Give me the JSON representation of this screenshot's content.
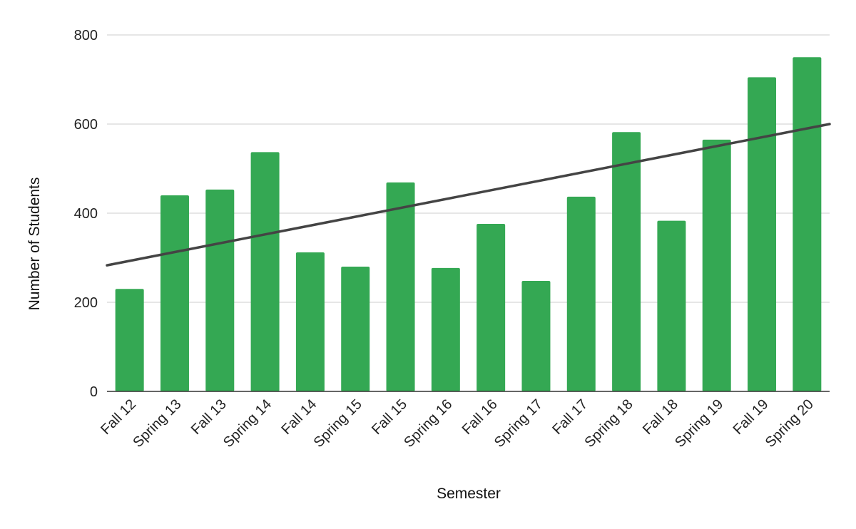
{
  "chart_data": {
    "type": "bar",
    "title": "",
    "xlabel": "Semester",
    "ylabel": "Number of Students",
    "categories": [
      "Fall 12",
      "Spring 13",
      "Fall 13",
      "Spring 14",
      "Fall 14",
      "Spring 15",
      "Fall 15",
      "Spring 16",
      "Fall 16",
      "Spring 17",
      "Fall 17",
      "Spring 18",
      "Fall 18",
      "Spring 19",
      "Fall 19",
      "Spring 20"
    ],
    "values": [
      230,
      440,
      453,
      537,
      312,
      280,
      469,
      277,
      376,
      248,
      437,
      582,
      383,
      565,
      705,
      750
    ],
    "yticks": [
      0,
      200,
      400,
      600,
      800
    ],
    "ylim": [
      0,
      800
    ],
    "grid": true,
    "legend": "none",
    "trendline": {
      "type": "linear",
      "start": 283,
      "end": 600
    },
    "colors": {
      "bar": "#34a853",
      "trendline": "#444444",
      "grid": "#cccccc",
      "axis": "#333333"
    }
  }
}
